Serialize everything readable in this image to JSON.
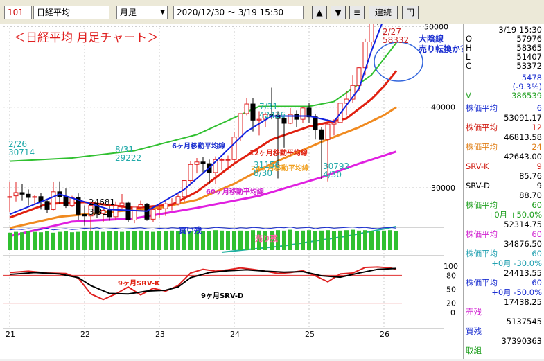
{
  "toolbar": {
    "code": "101",
    "name": "日経平均",
    "period": "月足",
    "range": "2020/12/30 ～ 3/19 15:30",
    "btn_up": "▲",
    "btn_down": "▼",
    "btn_menu": "≡",
    "btn_continuous": "連続",
    "btn_yen": "円"
  },
  "chart": {
    "title": "＜日経平均 月足チャート＞",
    "annotations": {
      "big_bear_1": "大陰線",
      "big_bear_2": "売り転換か？",
      "ma6": "6ヶ月移動平均線",
      "ma12": "12ヶ月移動平均線",
      "ma24": "24ヶ月移動平均線",
      "ma60": "60ヶ月移動平均線",
      "buy_rem": "買い残",
      "sell_rem": "売り残",
      "srv_k": "9ヶ月SRV-K",
      "srv_d": "9ヶ月SRV-D"
    },
    "price_labels": [
      {
        "date": "2/26",
        "value": "30714",
        "color": "#22aaaa"
      },
      {
        "date": "8/31",
        "value": "29222",
        "color": "#22aaaa"
      },
      {
        "date": "7/31",
        "value": "42426",
        "color": "#22aaaa"
      },
      {
        "date": "8/30",
        "value": "31156",
        "color": "#22aaaa"
      },
      {
        "date": "4/30",
        "value": "30792",
        "color": "#22aaaa"
      },
      {
        "date": "3/31",
        "value": "24681",
        "color": "#000000"
      },
      {
        "date": "2/27",
        "value": "58332",
        "color": "#cc2222"
      }
    ],
    "y_axis": [
      "50000",
      "40000",
      "30000"
    ],
    "osc_axis": [
      "100",
      "80",
      "50",
      "20",
      "0"
    ],
    "x_axis": [
      "21",
      "22",
      "23",
      "24",
      "25",
      "26"
    ],
    "colors": {
      "up": "#e02020",
      "down": "#000000",
      "ma6": "#1020e0",
      "ma12": "#e02010",
      "ma24": "#f08a20",
      "ma60": "#e020e0",
      "ma60b": "#20b0a0",
      "band": "#30c030",
      "vol": "#30c030"
    }
  },
  "chart_data": {
    "type": "candlestick",
    "title": "＜日経平均 月足チャート＞",
    "y_ticks": [
      30000,
      40000,
      50000
    ],
    "candles": [
      {
        "o": 28800,
        "h": 30700,
        "l": 27000,
        "c": 28900
      },
      {
        "o": 29000,
        "h": 30700,
        "l": 28300,
        "c": 29400
      },
      {
        "o": 29400,
        "h": 30500,
        "l": 28400,
        "c": 29200
      },
      {
        "o": 29200,
        "h": 29800,
        "l": 27800,
        "c": 28800
      },
      {
        "o": 28800,
        "h": 29100,
        "l": 27900,
        "c": 28900
      },
      {
        "o": 28900,
        "h": 29400,
        "l": 27300,
        "c": 28300
      },
      {
        "o": 28300,
        "h": 28500,
        "l": 26900,
        "c": 27300
      },
      {
        "o": 27300,
        "h": 30700,
        "l": 27200,
        "c": 29500
      },
      {
        "o": 29500,
        "h": 30800,
        "l": 28000,
        "c": 28900
      },
      {
        "o": 28900,
        "h": 29900,
        "l": 27500,
        "c": 27800
      },
      {
        "o": 27800,
        "h": 29000,
        "l": 27600,
        "c": 28800
      },
      {
        "o": 28800,
        "h": 29300,
        "l": 26000,
        "c": 26700
      },
      {
        "o": 26700,
        "h": 27800,
        "l": 25300,
        "c": 26500
      },
      {
        "o": 26500,
        "h": 28300,
        "l": 24681,
        "c": 27800
      },
      {
        "o": 27800,
        "h": 28000,
        "l": 26300,
        "c": 26800
      },
      {
        "o": 26800,
        "h": 27300,
        "l": 25700,
        "c": 27200
      },
      {
        "o": 27200,
        "h": 27800,
        "l": 25900,
        "c": 26400
      },
      {
        "o": 26400,
        "h": 28300,
        "l": 26000,
        "c": 27800
      },
      {
        "o": 27800,
        "h": 29222,
        "l": 27400,
        "c": 28100
      },
      {
        "o": 28100,
        "h": 28300,
        "l": 25700,
        "c": 26000
      },
      {
        "o": 26000,
        "h": 27600,
        "l": 25600,
        "c": 27600
      },
      {
        "o": 27600,
        "h": 28400,
        "l": 27300,
        "c": 27900
      },
      {
        "o": 27900,
        "h": 28100,
        "l": 25900,
        "c": 26100
      },
      {
        "o": 26100,
        "h": 27500,
        "l": 25700,
        "c": 27300
      },
      {
        "o": 27300,
        "h": 28000,
        "l": 26300,
        "c": 27400
      },
      {
        "o": 27400,
        "h": 28600,
        "l": 26500,
        "c": 28000
      },
      {
        "o": 28000,
        "h": 28700,
        "l": 27200,
        "c": 28000
      },
      {
        "o": 28000,
        "h": 29300,
        "l": 27800,
        "c": 28900
      },
      {
        "o": 28900,
        "h": 30900,
        "l": 28200,
        "c": 30900
      },
      {
        "o": 30900,
        "h": 33300,
        "l": 30300,
        "c": 32900
      },
      {
        "o": 32900,
        "h": 33700,
        "l": 31800,
        "c": 33200
      },
      {
        "o": 33200,
        "h": 33800,
        "l": 31800,
        "c": 33000
      },
      {
        "o": 33000,
        "h": 33500,
        "l": 30500,
        "c": 31900
      },
      {
        "o": 31900,
        "h": 33900,
        "l": 30500,
        "c": 33500
      },
      {
        "o": 33500,
        "h": 33700,
        "l": 32200,
        "c": 33500
      },
      {
        "o": 33500,
        "h": 34000,
        "l": 32200,
        "c": 33500
      },
      {
        "o": 33500,
        "h": 36900,
        "l": 33000,
        "c": 36300
      },
      {
        "o": 36300,
        "h": 39100,
        "l": 35800,
        "c": 39200
      },
      {
        "o": 39200,
        "h": 41100,
        "l": 39000,
        "c": 40400
      },
      {
        "o": 40400,
        "h": 41100,
        "l": 37000,
        "c": 38400
      },
      {
        "o": 38400,
        "h": 39500,
        "l": 36500,
        "c": 38500
      },
      {
        "o": 38500,
        "h": 39300,
        "l": 37500,
        "c": 39100
      },
      {
        "o": 39100,
        "h": 42426,
        "l": 38500,
        "c": 39000
      },
      {
        "o": 39000,
        "h": 39500,
        "l": 31156,
        "c": 38600
      },
      {
        "o": 38600,
        "h": 39000,
        "l": 35000,
        "c": 38000
      },
      {
        "o": 38000,
        "h": 39900,
        "l": 37900,
        "c": 39100
      },
      {
        "o": 39100,
        "h": 39600,
        "l": 37500,
        "c": 38500
      },
      {
        "o": 38500,
        "h": 40000,
        "l": 38000,
        "c": 39900
      },
      {
        "o": 39900,
        "h": 40500,
        "l": 38000,
        "c": 38800
      },
      {
        "o": 38800,
        "h": 39200,
        "l": 36000,
        "c": 37200
      },
      {
        "o": 37200,
        "h": 37500,
        "l": 31100,
        "c": 36000
      },
      {
        "o": 36000,
        "h": 38500,
        "l": 30792,
        "c": 37900
      },
      {
        "o": 37900,
        "h": 38500,
        "l": 36500,
        "c": 38100
      },
      {
        "o": 38100,
        "h": 40500,
        "l": 38000,
        "c": 40500
      },
      {
        "o": 40500,
        "h": 42000,
        "l": 39000,
        "c": 41000
      },
      {
        "o": 41000,
        "h": 44000,
        "l": 40500,
        "c": 42700
      },
      {
        "o": 42700,
        "h": 45000,
        "l": 42000,
        "c": 44900
      },
      {
        "o": 44900,
        "h": 48500,
        "l": 44000,
        "c": 48100
      },
      {
        "o": 48100,
        "h": 52700,
        "l": 47500,
        "c": 52400
      },
      {
        "o": 52400,
        "h": 54500,
        "l": 50200,
        "c": 51300
      },
      {
        "o": 51300,
        "h": 54300,
        "l": 50500,
        "c": 53300
      },
      {
        "o": 53300,
        "h": 58332,
        "l": 52600,
        "c": 57900
      },
      {
        "o": 57976,
        "h": 58365,
        "l": 51407,
        "c": 53372
      }
    ],
    "ma6": [
      [
        0,
        26700
      ],
      [
        8,
        29200
      ],
      [
        16,
        27300
      ],
      [
        22,
        27100
      ],
      [
        28,
        29800
      ],
      [
        32,
        32500
      ],
      [
        38,
        37000
      ],
      [
        42,
        38900
      ],
      [
        48,
        38900
      ],
      [
        52,
        38200
      ],
      [
        56,
        42300
      ],
      [
        58,
        47000
      ],
      [
        60,
        51000
      ],
      [
        62,
        52500
      ]
    ],
    "ma12": [
      [
        0,
        26300
      ],
      [
        6,
        28000
      ],
      [
        12,
        28200
      ],
      [
        20,
        27500
      ],
      [
        26,
        27900
      ],
      [
        30,
        29500
      ],
      [
        36,
        33000
      ],
      [
        42,
        36000
      ],
      [
        48,
        37600
      ],
      [
        54,
        38600
      ],
      [
        58,
        41000
      ],
      [
        60,
        42600
      ],
      [
        62,
        44500
      ]
    ],
    "ma24": [
      [
        0,
        25000
      ],
      [
        8,
        26400
      ],
      [
        16,
        27000
      ],
      [
        24,
        27500
      ],
      [
        30,
        28500
      ],
      [
        36,
        30500
      ],
      [
        42,
        33000
      ],
      [
        50,
        35700
      ],
      [
        56,
        37500
      ],
      [
        60,
        39000
      ],
      [
        62,
        40000
      ]
    ],
    "ma60": [
      [
        0,
        24000
      ],
      [
        10,
        25800
      ],
      [
        20,
        26200
      ],
      [
        30,
        27500
      ],
      [
        40,
        29000
      ],
      [
        50,
        31300
      ],
      [
        56,
        33000
      ],
      [
        62,
        34500
      ]
    ],
    "ma_long": [
      [
        34,
        22000
      ],
      [
        44,
        22800
      ],
      [
        54,
        24000
      ],
      [
        62,
        25200
      ]
    ],
    "band": [
      [
        0,
        33300
      ],
      [
        10,
        33700
      ],
      [
        20,
        34600
      ],
      [
        30,
        36600
      ],
      [
        40,
        40100
      ],
      [
        48,
        40100
      ],
      [
        52,
        40700
      ],
      [
        58,
        44000
      ],
      [
        62,
        48000
      ]
    ],
    "volume": [
      42,
      44,
      43,
      45,
      44,
      43,
      46,
      42,
      44,
      45,
      43,
      44,
      46,
      45,
      47,
      44,
      45,
      46,
      44,
      45,
      46,
      47,
      45,
      44,
      46,
      45,
      47,
      46,
      48,
      46,
      47,
      45,
      46,
      48,
      47,
      46,
      45,
      47,
      46,
      48,
      47,
      45,
      46,
      48,
      47,
      49,
      46,
      47,
      48,
      45,
      47,
      48,
      46,
      47,
      48,
      49,
      47,
      48,
      46,
      45,
      47,
      48,
      46
    ],
    "srv_k": [
      [
        0,
        86
      ],
      [
        3,
        89
      ],
      [
        6,
        85
      ],
      [
        9,
        84
      ],
      [
        11,
        74
      ],
      [
        13,
        40
      ],
      [
        15,
        28
      ],
      [
        17,
        40
      ],
      [
        19,
        55
      ],
      [
        21,
        38
      ],
      [
        23,
        52
      ],
      [
        25,
        46
      ],
      [
        27,
        58
      ],
      [
        29,
        85
      ],
      [
        31,
        93
      ],
      [
        33,
        89
      ],
      [
        35,
        92
      ],
      [
        37,
        96
      ],
      [
        39,
        93
      ],
      [
        41,
        89
      ],
      [
        43,
        84
      ],
      [
        45,
        86
      ],
      [
        47,
        90
      ],
      [
        49,
        79
      ],
      [
        51,
        66
      ],
      [
        53,
        83
      ],
      [
        55,
        85
      ],
      [
        57,
        97
      ],
      [
        59,
        98
      ],
      [
        61,
        96
      ],
      [
        62,
        93
      ]
    ],
    "srv_d": [
      [
        0,
        82
      ],
      [
        4,
        86
      ],
      [
        8,
        83
      ],
      [
        11,
        75
      ],
      [
        13,
        58
      ],
      [
        16,
        41
      ],
      [
        19,
        40
      ],
      [
        22,
        46
      ],
      [
        25,
        48
      ],
      [
        27,
        55
      ],
      [
        29,
        75
      ],
      [
        32,
        86
      ],
      [
        35,
        90
      ],
      [
        38,
        92
      ],
      [
        41,
        89
      ],
      [
        44,
        87
      ],
      [
        47,
        88
      ],
      [
        50,
        79
      ],
      [
        53,
        76
      ],
      [
        56,
        85
      ],
      [
        59,
        93
      ],
      [
        62,
        95
      ]
    ],
    "x_labels": [
      "21",
      "22",
      "23",
      "24",
      "25",
      "26"
    ]
  },
  "panel": {
    "datetime": "3/19 15:30",
    "ohlc": [
      {
        "k": "O",
        "v": "57976"
      },
      {
        "k": "H",
        "v": "58365"
      },
      {
        "k": "L",
        "v": "51407"
      },
      {
        "k": "C",
        "v": "53372"
      }
    ],
    "change": "5478",
    "change_pct": "(-9.3%)",
    "volume_label": "V",
    "volume": "386539",
    "ind": [
      {
        "name": "株価平均",
        "n": "6",
        "val": "53091.17",
        "sub": "",
        "color": "#1a2ed0"
      },
      {
        "name": "株価平均",
        "n": "12",
        "val": "46813.58",
        "sub": "",
        "color": "#d01a10"
      },
      {
        "name": "株価平均",
        "n": "24",
        "val": "42643.00",
        "sub": "",
        "color": "#e0801a"
      },
      {
        "name": "SRV-K",
        "n": "9",
        "val": "85.76",
        "sub": "",
        "color": "#d01a10"
      },
      {
        "name": "SRV-D",
        "n": "9",
        "val": "88.70",
        "sub": "",
        "color": "#000000"
      },
      {
        "name": "株価平均",
        "n": "60",
        "val": "52314.75",
        "sub": "+0月 +50.0%",
        "color": "#20a020"
      },
      {
        "name": "株価平均",
        "n": "60",
        "val": "34876.50",
        "sub": "",
        "color": "#d020d0"
      },
      {
        "name": "株価平均",
        "n": "60",
        "val": "24413.55",
        "sub": "+0月 -30.0%",
        "color": "#20a0b0"
      },
      {
        "name": "株価平均",
        "n": "60",
        "val": "17438.25",
        "sub": "+0月 -50.0%",
        "color": "#1a2ed0"
      }
    ],
    "sell_remaining_label": "売残",
    "sell_remaining": "5137545",
    "buy_remaining_label": "買残",
    "buy_remaining": "37390363",
    "ratio_label": "取組"
  }
}
